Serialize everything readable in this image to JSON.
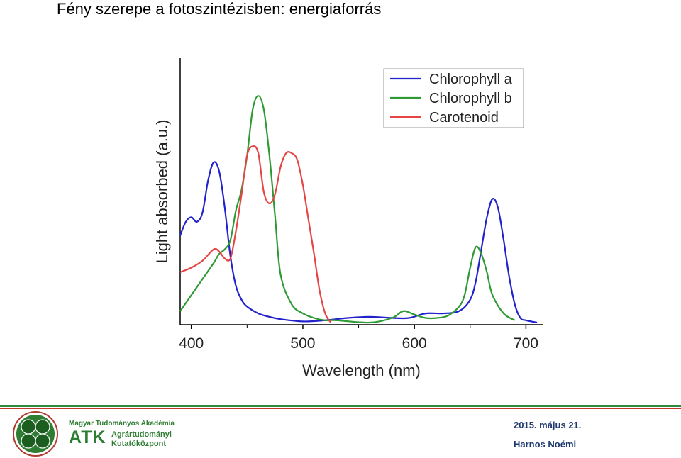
{
  "slide": {
    "title": "Fény szerepe a fotoszintézisben: energiaforrás"
  },
  "chart_data": {
    "type": "line",
    "xlabel": "Wavelength (nm)",
    "ylabel": "Light absorbed (a.u.)",
    "xlim": [
      390,
      715
    ],
    "ylim": [
      0,
      1
    ],
    "xticks": [
      400,
      500,
      600,
      700
    ],
    "grid": false,
    "legend_position": "top-right",
    "series": [
      {
        "name": "Chlorophyll a",
        "color": "#2222cc",
        "x": [
          390,
          395,
          400,
          405,
          410,
          415,
          420,
          425,
          430,
          435,
          440,
          445,
          450,
          460,
          470,
          480,
          500,
          520,
          540,
          560,
          580,
          595,
          610,
          625,
          640,
          650,
          655,
          660,
          665,
          670,
          675,
          680,
          685,
          690,
          695,
          700,
          710
        ],
        "y": [
          0.38,
          0.44,
          0.46,
          0.44,
          0.48,
          0.62,
          0.7,
          0.66,
          0.5,
          0.29,
          0.16,
          0.1,
          0.07,
          0.04,
          0.025,
          0.015,
          0.005,
          0.01,
          0.02,
          0.025,
          0.02,
          0.02,
          0.04,
          0.04,
          0.05,
          0.1,
          0.18,
          0.32,
          0.46,
          0.54,
          0.5,
          0.36,
          0.2,
          0.08,
          0.02,
          0.01,
          0.0
        ]
      },
      {
        "name": "Chlorophyll b",
        "color": "#2e9a34",
        "x": [
          390,
          400,
          410,
          420,
          425,
          430,
          435,
          440,
          445,
          450,
          455,
          460,
          465,
          470,
          475,
          480,
          490,
          500,
          510,
          520,
          530,
          560,
          580,
          590,
          600,
          610,
          620,
          630,
          640,
          645,
          650,
          655,
          660,
          665,
          670,
          680,
          690
        ],
        "y": [
          0.05,
          0.12,
          0.19,
          0.26,
          0.3,
          0.32,
          0.36,
          0.49,
          0.58,
          0.73,
          0.93,
          0.99,
          0.93,
          0.73,
          0.47,
          0.21,
          0.08,
          0.04,
          0.02,
          0.01,
          0.01,
          0.0,
          0.02,
          0.05,
          0.035,
          0.02,
          0.02,
          0.03,
          0.07,
          0.12,
          0.24,
          0.33,
          0.3,
          0.22,
          0.12,
          0.04,
          0.01
        ]
      },
      {
        "name": "Carotenoid",
        "color": "#e64545",
        "x": [
          390,
          400,
          410,
          420,
          425,
          430,
          435,
          440,
          445,
          450,
          455,
          460,
          465,
          470,
          475,
          480,
          485,
          490,
          495,
          500,
          505,
          510,
          515,
          520,
          525
        ],
        "y": [
          0.22,
          0.24,
          0.27,
          0.32,
          0.31,
          0.28,
          0.28,
          0.4,
          0.56,
          0.73,
          0.77,
          0.74,
          0.57,
          0.52,
          0.56,
          0.68,
          0.74,
          0.74,
          0.71,
          0.6,
          0.45,
          0.3,
          0.14,
          0.04,
          0.0
        ]
      }
    ]
  },
  "footer": {
    "org_name_small": "Magyar Tudományos Akadémia",
    "org_acronym": "ATK",
    "org_line1": "Agrártudományi",
    "org_line2": "Kutatóközpont",
    "date": "2015. május 21.",
    "author": "Harnos Noémi",
    "green": "#2e7d32",
    "navy": "#1f3a6e"
  }
}
